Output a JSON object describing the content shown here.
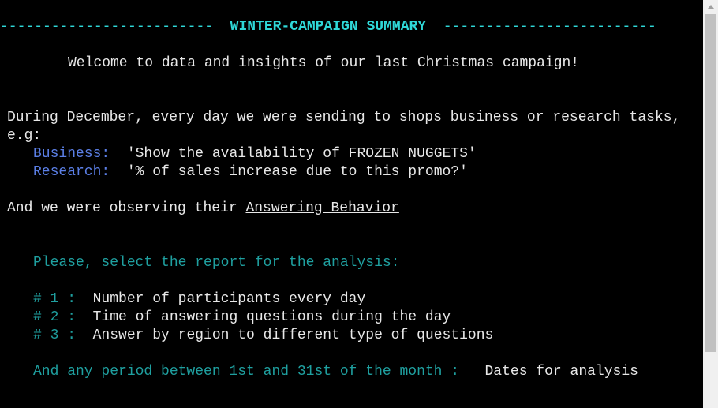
{
  "header": {
    "left_dashes": "-------------------------",
    "title": "WINTER-CAMPAIGN SUMMARY",
    "right_dashes": "-------------------------"
  },
  "welcome": "Welcome to data and insights of our last Christmas campaign!",
  "intro": {
    "line1": "During December, every day we were sending to shops business or research tasks,",
    "line2": "e.g:"
  },
  "examples": {
    "business_label": "Business:",
    "business_text": "'Show the availability of FROZEN NUGGETS'",
    "research_label": "Research:",
    "research_text": "'% of sales increase due to this promo?'"
  },
  "observing": {
    "prefix": "And we were observing their ",
    "link": "Answering Behavior"
  },
  "prompt": "Please, select the report for the analysis:",
  "reports": [
    {
      "num": "# 1 :",
      "label": "Number of participants every day"
    },
    {
      "num": "# 2 :",
      "label": "Time of answering questions during the day"
    },
    {
      "num": "# 3 :",
      "label": "Answer by region to different type of questions"
    }
  ],
  "period": {
    "text": "And any period between 1st and 31st of the month :",
    "option": "Dates for analysis"
  },
  "colors": {
    "background": "#000000",
    "text": "#e8e8e8",
    "title": "#2fd8d8",
    "label_blue": "#5b7fe6",
    "teal": "#1fa0a0"
  }
}
